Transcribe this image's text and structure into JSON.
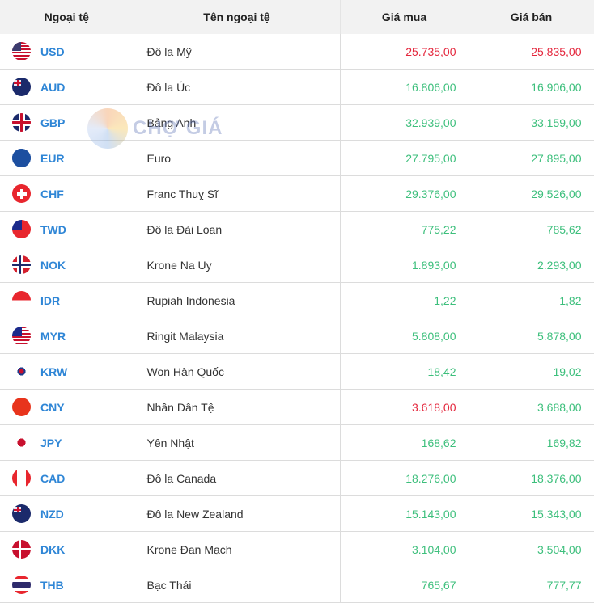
{
  "header": {
    "code": "Ngoại tệ",
    "name": "Tên ngoại tệ",
    "buy": "Giá mua",
    "sell": "Giá bán"
  },
  "colors": {
    "code": "#2f86d6",
    "up": "#3dbf7c",
    "down": "#e4263c"
  },
  "watermark": "CHỢ GIÁ",
  "rows": [
    {
      "code": "USD",
      "name": "Đô la Mỹ",
      "buy": "25.735,00",
      "sell": "25.835,00",
      "buy_trend": "down",
      "sell_trend": "down",
      "flag": "us-flag-icon"
    },
    {
      "code": "AUD",
      "name": "Đô la Úc",
      "buy": "16.806,00",
      "sell": "16.906,00",
      "buy_trend": "up",
      "sell_trend": "up",
      "flag": "au-flag-icon"
    },
    {
      "code": "GBP",
      "name": "Bảng Anh",
      "buy": "32.939,00",
      "sell": "33.159,00",
      "buy_trend": "up",
      "sell_trend": "up",
      "flag": "gb-flag-icon"
    },
    {
      "code": "EUR",
      "name": "Euro",
      "buy": "27.795,00",
      "sell": "27.895,00",
      "buy_trend": "up",
      "sell_trend": "up",
      "flag": "eu-flag-icon"
    },
    {
      "code": "CHF",
      "name": "Franc Thuỵ Sĩ",
      "buy": "29.376,00",
      "sell": "29.526,00",
      "buy_trend": "up",
      "sell_trend": "up",
      "flag": "ch-flag-icon"
    },
    {
      "code": "TWD",
      "name": "Đô la Đài Loan",
      "buy": "775,22",
      "sell": "785,62",
      "buy_trend": "up",
      "sell_trend": "up",
      "flag": "tw-flag-icon"
    },
    {
      "code": "NOK",
      "name": "Krone Na Uy",
      "buy": "1.893,00",
      "sell": "2.293,00",
      "buy_trend": "up",
      "sell_trend": "up",
      "flag": "no-flag-icon"
    },
    {
      "code": "IDR",
      "name": "Rupiah Indonesia",
      "buy": "1,22",
      "sell": "1,82",
      "buy_trend": "up",
      "sell_trend": "up",
      "flag": "id-flag-icon"
    },
    {
      "code": "MYR",
      "name": "Ringit Malaysia",
      "buy": "5.808,00",
      "sell": "5.878,00",
      "buy_trend": "up",
      "sell_trend": "up",
      "flag": "my-flag-icon"
    },
    {
      "code": "KRW",
      "name": "Won Hàn Quốc",
      "buy": "18,42",
      "sell": "19,02",
      "buy_trend": "up",
      "sell_trend": "up",
      "flag": "kr-flag-icon"
    },
    {
      "code": "CNY",
      "name": "Nhân Dân Tệ",
      "buy": "3.618,00",
      "sell": "3.688,00",
      "buy_trend": "down",
      "sell_trend": "up",
      "flag": "cn-flag-icon"
    },
    {
      "code": "JPY",
      "name": "Yên Nhật",
      "buy": "168,62",
      "sell": "169,82",
      "buy_trend": "up",
      "sell_trend": "up",
      "flag": "jp-flag-icon"
    },
    {
      "code": "CAD",
      "name": "Đô la Canada",
      "buy": "18.276,00",
      "sell": "18.376,00",
      "buy_trend": "up",
      "sell_trend": "up",
      "flag": "ca-flag-icon"
    },
    {
      "code": "NZD",
      "name": "Đô la New Zealand",
      "buy": "15.143,00",
      "sell": "15.343,00",
      "buy_trend": "up",
      "sell_trend": "up",
      "flag": "nz-flag-icon"
    },
    {
      "code": "DKK",
      "name": "Krone Đan Mạch",
      "buy": "3.104,00",
      "sell": "3.504,00",
      "buy_trend": "up",
      "sell_trend": "up",
      "flag": "dk-flag-icon"
    },
    {
      "code": "THB",
      "name": "Bạc Thái",
      "buy": "765,67",
      "sell": "777,77",
      "buy_trend": "up",
      "sell_trend": "up",
      "flag": "th-flag-icon"
    }
  ]
}
